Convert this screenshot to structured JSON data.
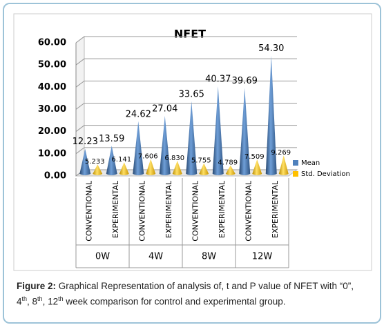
{
  "chart_data": {
    "type": "cone",
    "title": "NFET",
    "categories": [
      "CONVENTIONAL",
      "EXPERIMENTAL",
      "CONVENTIONAL",
      "EXPERIMENTAL",
      "CONVENTIONAL",
      "EXPERIMENTAL",
      "CONVENTIONAL",
      "EXPERIMENTAL"
    ],
    "groups": [
      "0W",
      "4W",
      "8W",
      "12W"
    ],
    "series": [
      {
        "name": "Mean",
        "color": "#4f81bd",
        "values": [
          12.23,
          13.59,
          24.62,
          27.04,
          33.65,
          40.37,
          39.69,
          54.3
        ],
        "value_labels": [
          "12.23",
          "13.59",
          "24.62",
          "27.04",
          "33.65",
          "40.37",
          "39.69",
          "54.30"
        ]
      },
      {
        "name": "Std. Deviation",
        "color": "#ffc000",
        "values": [
          5.233,
          6.141,
          7.606,
          6.83,
          5.755,
          4.789,
          7.509,
          9.269
        ],
        "value_labels": [
          "5.233",
          "6.141",
          "7.606",
          "6.830",
          "5.755",
          "4.789",
          "7.509",
          "9.269"
        ]
      }
    ],
    "ylim": [
      0,
      60
    ],
    "yticks": [
      {
        "value": 0,
        "label": "0.00"
      },
      {
        "value": 10,
        "label": "10.00"
      },
      {
        "value": 20,
        "label": "20.00"
      },
      {
        "value": 30,
        "label": "30.00"
      },
      {
        "value": 40,
        "label": "40.00"
      },
      {
        "value": 50,
        "label": "50.00"
      },
      {
        "value": 60,
        "label": "60.00"
      }
    ],
    "grid": true,
    "legend": "right"
  },
  "caption": {
    "label": "Figure 2:",
    "parts": [
      {
        "text": " Graphical Representation of analysis of, t and P value of NFET with “0”, 4"
      },
      {
        "text": "th",
        "sup": true
      },
      {
        "text": ", 8"
      },
      {
        "text": "th",
        "sup": true
      },
      {
        "text": ", 12"
      },
      {
        "text": "th",
        "sup": true
      },
      {
        "text": " week comparison for control and experimental group."
      }
    ]
  }
}
